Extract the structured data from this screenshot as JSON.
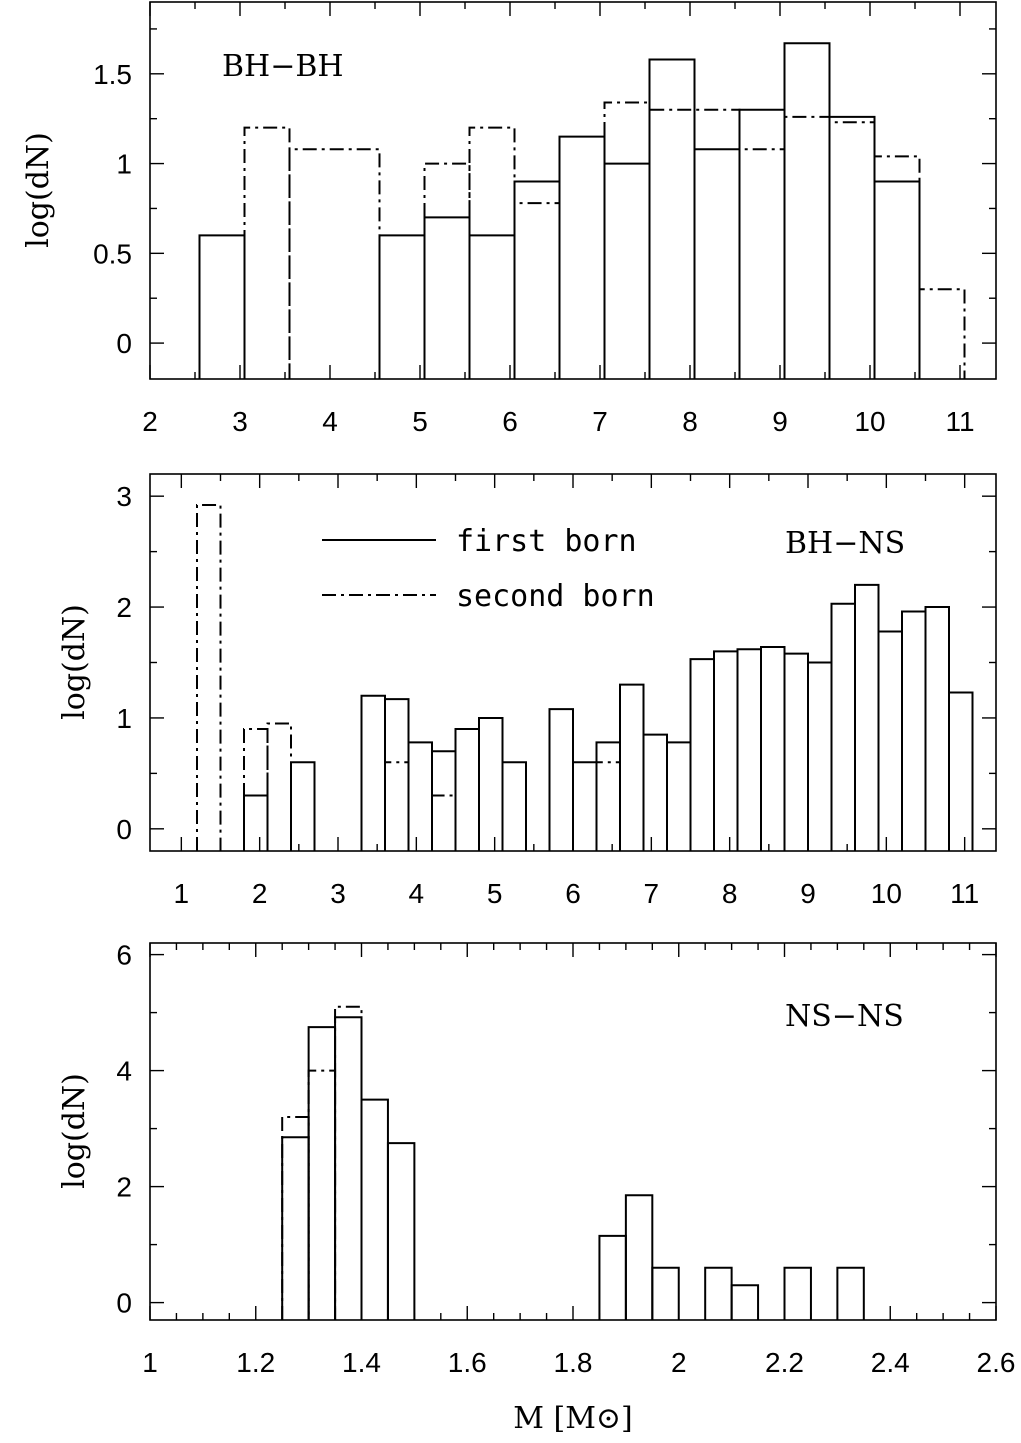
{
  "chart_data": [
    {
      "type": "histogram",
      "panel_label": "BH−BH",
      "ylabel": "log(dN)",
      "xlabel": "",
      "xlim": [
        2,
        11.4
      ],
      "ylim": [
        -0.2,
        1.9
      ],
      "xticks": [
        2,
        3,
        4,
        5,
        6,
        7,
        8,
        9,
        10,
        11
      ],
      "yticks": [
        0,
        0.5,
        1,
        1.5
      ],
      "ytick_labels": [
        "0",
        "0.5",
        "1",
        "1.5"
      ],
      "x_minor_step": 0.5,
      "y_minor_step": 0.25,
      "series": [
        {
          "name": "first born",
          "style": "solid",
          "bins": [
            {
              "x0": 2.55,
              "x1": 3.05,
              "y": 0.6
            },
            {
              "x0": 4.55,
              "x1": 5.05,
              "y": 0.6
            },
            {
              "x0": 5.05,
              "x1": 5.55,
              "y": 0.7
            },
            {
              "x0": 5.55,
              "x1": 6.05,
              "y": 0.6
            },
            {
              "x0": 6.05,
              "x1": 6.55,
              "y": 0.9
            },
            {
              "x0": 6.55,
              "x1": 7.05,
              "y": 1.15
            },
            {
              "x0": 7.05,
              "x1": 7.55,
              "y": 1.0
            },
            {
              "x0": 7.55,
              "x1": 8.05,
              "y": 1.58
            },
            {
              "x0": 8.05,
              "x1": 8.55,
              "y": 1.08
            },
            {
              "x0": 8.55,
              "x1": 9.05,
              "y": 1.3
            },
            {
              "x0": 9.05,
              "x1": 9.55,
              "y": 1.67
            },
            {
              "x0": 9.55,
              "x1": 10.05,
              "y": 1.26
            },
            {
              "x0": 10.05,
              "x1": 10.55,
              "y": 0.9
            }
          ]
        },
        {
          "name": "second born",
          "style": "dashdot",
          "bins": [
            {
              "x0": 3.05,
              "x1": 3.55,
              "y": 1.2
            },
            {
              "x0": 3.55,
              "x1": 4.55,
              "y": 1.08
            },
            {
              "x0": 5.05,
              "x1": 5.55,
              "y": 1.0
            },
            {
              "x0": 5.55,
              "x1": 6.05,
              "y": 1.2
            },
            {
              "x0": 6.05,
              "x1": 6.55,
              "y": 0.78
            },
            {
              "x0": 7.05,
              "x1": 7.55,
              "y": 1.34
            },
            {
              "x0": 7.55,
              "x1": 8.55,
              "y": 1.3
            },
            {
              "x0": 8.55,
              "x1": 9.05,
              "y": 1.08
            },
            {
              "x0": 9.05,
              "x1": 9.55,
              "y": 1.26
            },
            {
              "x0": 9.55,
              "x1": 10.05,
              "y": 1.23
            },
            {
              "x0": 10.05,
              "x1": 10.55,
              "y": 1.04
            },
            {
              "x0": 10.55,
              "x1": 11.05,
              "y": 0.3
            }
          ]
        }
      ]
    },
    {
      "type": "histogram",
      "panel_label": "BH−NS",
      "ylabel": "log(dN)",
      "xlabel": "",
      "xlim": [
        0.6,
        11.4
      ],
      "ylim": [
        -0.2,
        3.2
      ],
      "xticks": [
        1,
        2,
        3,
        4,
        5,
        6,
        7,
        8,
        9,
        10,
        11
      ],
      "yticks": [
        0,
        1,
        2,
        3
      ],
      "ytick_labels": [
        "0",
        "1",
        "2",
        "3"
      ],
      "x_minor_step": 0.5,
      "y_minor_step": 0.5,
      "legend": {
        "position": "top-center",
        "entries": [
          {
            "label": "first born",
            "style": "solid"
          },
          {
            "label": "second born",
            "style": "dashdot"
          }
        ]
      },
      "series": [
        {
          "name": "first born",
          "style": "solid",
          "bins": [
            {
              "x0": 1.8,
              "x1": 2.1,
              "y": 0.3
            },
            {
              "x0": 2.4,
              "x1": 2.7,
              "y": 0.6
            },
            {
              "x0": 3.3,
              "x1": 3.6,
              "y": 1.2
            },
            {
              "x0": 3.6,
              "x1": 3.9,
              "y": 1.17
            },
            {
              "x0": 3.9,
              "x1": 4.2,
              "y": 0.78
            },
            {
              "x0": 4.2,
              "x1": 4.5,
              "y": 0.7
            },
            {
              "x0": 4.5,
              "x1": 4.8,
              "y": 0.9
            },
            {
              "x0": 4.8,
              "x1": 5.1,
              "y": 1.0
            },
            {
              "x0": 5.1,
              "x1": 5.4,
              "y": 0.6
            },
            {
              "x0": 5.7,
              "x1": 6.0,
              "y": 1.08
            },
            {
              "x0": 6.0,
              "x1": 6.3,
              "y": 0.6
            },
            {
              "x0": 6.3,
              "x1": 6.6,
              "y": 0.78
            },
            {
              "x0": 6.6,
              "x1": 6.9,
              "y": 1.3
            },
            {
              "x0": 6.9,
              "x1": 7.2,
              "y": 0.85
            },
            {
              "x0": 7.2,
              "x1": 7.5,
              "y": 0.78
            },
            {
              "x0": 7.5,
              "x1": 7.8,
              "y": 1.53
            },
            {
              "x0": 7.8,
              "x1": 8.1,
              "y": 1.6
            },
            {
              "x0": 8.1,
              "x1": 8.4,
              "y": 1.62
            },
            {
              "x0": 8.4,
              "x1": 8.7,
              "y": 1.64
            },
            {
              "x0": 8.7,
              "x1": 9.0,
              "y": 1.58
            },
            {
              "x0": 9.0,
              "x1": 9.3,
              "y": 1.5
            },
            {
              "x0": 9.3,
              "x1": 9.6,
              "y": 2.03
            },
            {
              "x0": 9.6,
              "x1": 9.9,
              "y": 2.2
            },
            {
              "x0": 9.9,
              "x1": 10.2,
              "y": 1.78
            },
            {
              "x0": 10.2,
              "x1": 10.5,
              "y": 1.96
            },
            {
              "x0": 10.5,
              "x1": 10.8,
              "y": 2.0
            },
            {
              "x0": 10.8,
              "x1": 11.1,
              "y": 1.23
            }
          ]
        },
        {
          "name": "second born",
          "style": "dashdot",
          "bins": [
            {
              "x0": 1.2,
              "x1": 1.5,
              "y": 2.92
            },
            {
              "x0": 1.8,
              "x1": 2.1,
              "y": 0.9
            },
            {
              "x0": 2.1,
              "x1": 2.4,
              "y": 0.95
            },
            {
              "x0": 3.6,
              "x1": 3.9,
              "y": 0.6
            },
            {
              "x0": 4.2,
              "x1": 4.5,
              "y": 0.3
            },
            {
              "x0": 6.3,
              "x1": 6.6,
              "y": 0.6
            }
          ]
        }
      ]
    },
    {
      "type": "histogram",
      "panel_label": "NS−NS",
      "ylabel": "log(dN)",
      "xlabel": "M  [M⊙]",
      "xlim": [
        1.0,
        2.6
      ],
      "ylim": [
        -0.3,
        6.2
      ],
      "xticks": [
        1,
        1.2,
        1.4,
        1.6,
        1.8,
        2,
        2.2,
        2.4,
        2.6
      ],
      "xtick_labels": [
        "1",
        "1.2",
        "1.4",
        "1.6",
        "1.8",
        "2",
        "2.2",
        "2.4",
        "2.6"
      ],
      "yticks": [
        0,
        2,
        4,
        6
      ],
      "ytick_labels": [
        "0",
        "2",
        "4",
        "6"
      ],
      "x_minor_step": 0.05,
      "y_minor_step": 1,
      "series": [
        {
          "name": "first born",
          "style": "solid",
          "bins": [
            {
              "x0": 1.25,
              "x1": 1.3,
              "y": 2.85
            },
            {
              "x0": 1.3,
              "x1": 1.35,
              "y": 4.75
            },
            {
              "x0": 1.35,
              "x1": 1.4,
              "y": 4.92
            },
            {
              "x0": 1.4,
              "x1": 1.45,
              "y": 3.5
            },
            {
              "x0": 1.45,
              "x1": 1.5,
              "y": 2.75
            },
            {
              "x0": 1.85,
              "x1": 1.9,
              "y": 1.15
            },
            {
              "x0": 1.9,
              "x1": 1.95,
              "y": 1.85
            },
            {
              "x0": 1.95,
              "x1": 2.0,
              "y": 0.6
            },
            {
              "x0": 2.05,
              "x1": 2.1,
              "y": 0.6
            },
            {
              "x0": 2.1,
              "x1": 2.15,
              "y": 0.3
            },
            {
              "x0": 2.2,
              "x1": 2.25,
              "y": 0.6
            },
            {
              "x0": 2.3,
              "x1": 2.35,
              "y": 0.6
            }
          ]
        },
        {
          "name": "second born",
          "style": "dashdot",
          "bins": [
            {
              "x0": 1.25,
              "x1": 1.3,
              "y": 3.2
            },
            {
              "x0": 1.3,
              "x1": 1.35,
              "y": 4.0
            },
            {
              "x0": 1.35,
              "x1": 1.4,
              "y": 5.1
            }
          ]
        }
      ]
    }
  ]
}
